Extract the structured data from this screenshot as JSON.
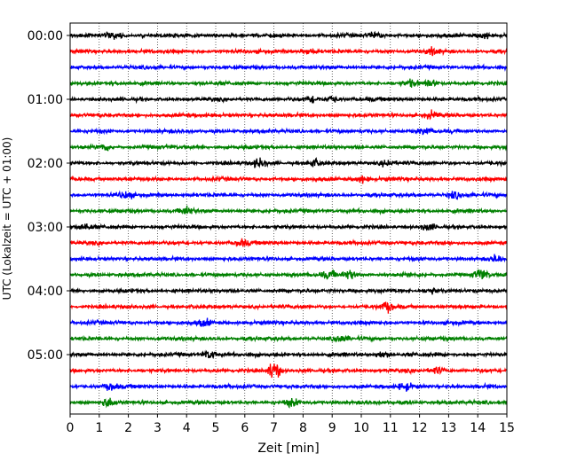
{
  "chart_data": {
    "type": "line",
    "title": "",
    "xlabel": "Zeit  [min]",
    "ylabel": "UTC (Lokalzeit = UTC + 01:00)",
    "xlim": [
      0,
      15
    ],
    "x_ticks": [
      "0",
      "1",
      "2",
      "3",
      "4",
      "5",
      "6",
      "7",
      "8",
      "9",
      "10",
      "11",
      "12",
      "13",
      "14",
      "15"
    ],
    "y_ticks": [
      "00:00",
      "01:00",
      "02:00",
      "03:00",
      "04:00",
      "05:00"
    ],
    "grid": "vertical dotted lines at each minute",
    "trace_interval_minutes": 15,
    "color_cycle": [
      "#000000",
      "#ff0000",
      "#0000ff",
      "#008000"
    ],
    "traces": [
      {
        "start": "00:00",
        "color": "#000000"
      },
      {
        "start": "00:15",
        "color": "#ff0000"
      },
      {
        "start": "00:30",
        "color": "#0000ff"
      },
      {
        "start": "00:45",
        "color": "#008000"
      },
      {
        "start": "01:00",
        "color": "#000000"
      },
      {
        "start": "01:15",
        "color": "#ff0000"
      },
      {
        "start": "01:30",
        "color": "#0000ff"
      },
      {
        "start": "01:45",
        "color": "#008000"
      },
      {
        "start": "02:00",
        "color": "#000000"
      },
      {
        "start": "02:15",
        "color": "#ff0000"
      },
      {
        "start": "02:30",
        "color": "#0000ff"
      },
      {
        "start": "02:45",
        "color": "#008000"
      },
      {
        "start": "03:00",
        "color": "#000000"
      },
      {
        "start": "03:15",
        "color": "#ff0000"
      },
      {
        "start": "03:30",
        "color": "#0000ff"
      },
      {
        "start": "03:45",
        "color": "#008000"
      },
      {
        "start": "04:00",
        "color": "#000000"
      },
      {
        "start": "04:15",
        "color": "#ff0000"
      },
      {
        "start": "04:30",
        "color": "#0000ff"
      },
      {
        "start": "04:45",
        "color": "#008000"
      },
      {
        "start": "05:00",
        "color": "#000000"
      },
      {
        "start": "05:15",
        "color": "#ff0000"
      },
      {
        "start": "05:30",
        "color": "#0000ff"
      },
      {
        "start": "05:45",
        "color": "#008000"
      }
    ],
    "bursts": [
      {
        "trace": 0,
        "minute": 1.5,
        "amp": 1.4
      },
      {
        "trace": 0,
        "minute": 10.5,
        "amp": 1.3
      },
      {
        "trace": 0,
        "minute": 14.2,
        "amp": 1.4
      },
      {
        "trace": 1,
        "minute": 8.2,
        "amp": 1.2
      },
      {
        "trace": 1,
        "minute": 12.5,
        "amp": 1.3
      },
      {
        "trace": 3,
        "minute": 12.4,
        "amp": 1.6
      },
      {
        "trace": 3,
        "minute": 11.7,
        "amp": 1.3
      },
      {
        "trace": 4,
        "minute": 8.3,
        "amp": 1.5
      },
      {
        "trace": 4,
        "minute": 9.0,
        "amp": 1.4
      },
      {
        "trace": 5,
        "minute": 12.4,
        "amp": 1.4
      },
      {
        "trace": 6,
        "minute": 12.2,
        "amp": 1.3
      },
      {
        "trace": 7,
        "minute": 1.2,
        "amp": 1.5
      },
      {
        "trace": 8,
        "minute": 6.5,
        "amp": 1.9
      },
      {
        "trace": 8,
        "minute": 10.9,
        "amp": 1.6
      },
      {
        "trace": 8,
        "minute": 8.4,
        "amp": 1.4
      },
      {
        "trace": 9,
        "minute": 10.0,
        "amp": 1.5
      },
      {
        "trace": 10,
        "minute": 1.9,
        "amp": 1.5
      },
      {
        "trace": 10,
        "minute": 13.2,
        "amp": 1.4
      },
      {
        "trace": 11,
        "minute": 4.0,
        "amp": 1.8
      },
      {
        "trace": 12,
        "minute": 0.5,
        "amp": 1.5
      },
      {
        "trace": 12,
        "minute": 12.3,
        "amp": 1.4
      },
      {
        "trace": 13,
        "minute": 5.9,
        "amp": 1.3
      },
      {
        "trace": 14,
        "minute": 14.6,
        "amp": 1.4
      },
      {
        "trace": 15,
        "minute": 9.6,
        "amp": 2.2
      },
      {
        "trace": 15,
        "minute": 14.1,
        "amp": 2.4
      },
      {
        "trace": 15,
        "minute": 8.9,
        "amp": 1.6
      },
      {
        "trace": 16,
        "minute": 12.4,
        "amp": 1.3
      },
      {
        "trace": 17,
        "minute": 10.9,
        "amp": 1.9
      },
      {
        "trace": 18,
        "minute": 4.6,
        "amp": 1.4
      },
      {
        "trace": 19,
        "minute": 9.3,
        "amp": 1.5
      },
      {
        "trace": 20,
        "minute": 4.8,
        "amp": 1.9
      },
      {
        "trace": 20,
        "minute": 10.7,
        "amp": 1.5
      },
      {
        "trace": 21,
        "minute": 7.0,
        "amp": 4.0
      },
      {
        "trace": 21,
        "minute": 12.6,
        "amp": 1.4
      },
      {
        "trace": 22,
        "minute": 1.4,
        "amp": 1.5
      },
      {
        "trace": 22,
        "minute": 11.5,
        "amp": 1.6
      },
      {
        "trace": 23,
        "minute": 1.3,
        "amp": 1.9
      },
      {
        "trace": 23,
        "minute": 7.6,
        "amp": 1.4
      }
    ]
  }
}
